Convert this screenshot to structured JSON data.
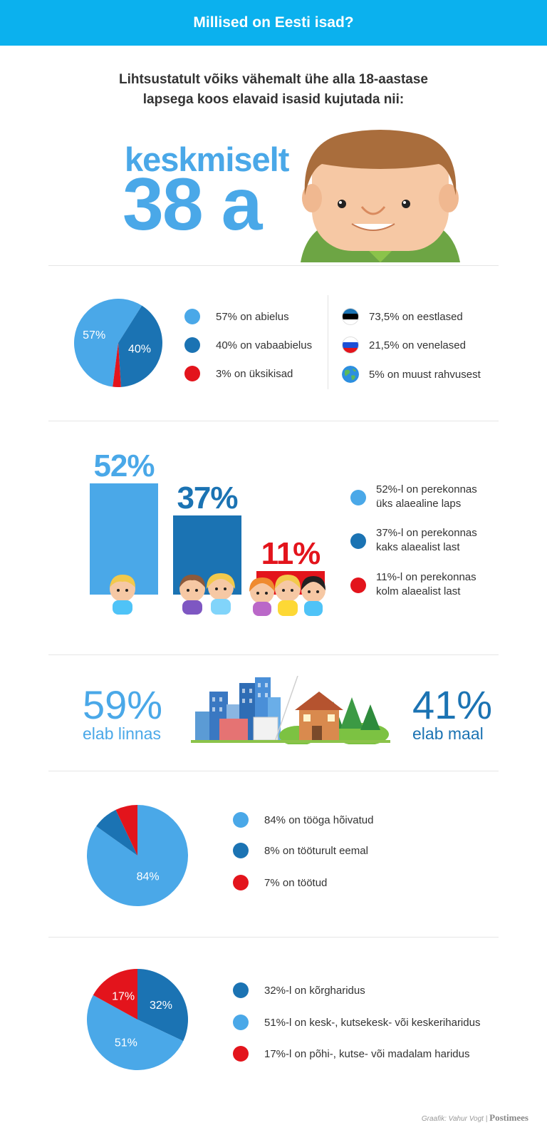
{
  "header": {
    "title": "Millised on Eesti isad?"
  },
  "intro": {
    "line1": "Lihtsustatult võiks vähemalt ühe alla 18-aastase",
    "line2": "lapsega koos elavaid isasid kujutada nii:"
  },
  "age": {
    "label": "keskmiselt",
    "value": "38 a"
  },
  "colors": {
    "light_blue": "#4aa8e8",
    "dark_blue": "#1b73b3",
    "red": "#e3141c",
    "header": "#0bb1ee"
  },
  "chart_data": [
    {
      "type": "pie",
      "slices": [
        {
          "label": "57% on abielus",
          "value": 57,
          "pct_label": "57%",
          "color": "#4aa8e8"
        },
        {
          "label": "40% on vabaabielus",
          "value": 40,
          "pct_label": "40%",
          "color": "#1b73b3"
        },
        {
          "label": "3% on üksikisad",
          "value": 3,
          "pct_label": "",
          "color": "#e3141c"
        }
      ]
    },
    {
      "type": "table",
      "rows": [
        {
          "icon": "estonia-flag-icon",
          "label": "73,5% on eestlased",
          "value": 73.5
        },
        {
          "icon": "russia-flag-icon",
          "label": "21,5% on venelased",
          "value": 21.5
        },
        {
          "icon": "globe-icon",
          "label": "5% on muust rahvusest",
          "value": 5
        }
      ]
    },
    {
      "type": "bar",
      "categories": [
        "52%",
        "37%",
        "11%"
      ],
      "values": [
        52,
        37,
        11
      ],
      "colors": [
        "#4aa8e8",
        "#1b73b3",
        "#e3141c"
      ],
      "legend": [
        {
          "line1": "52%-l on perekonnas",
          "line2": "üks alaealine laps"
        },
        {
          "line1": "37%-l on perekonnas",
          "line2": "kaks alaealist last"
        },
        {
          "line1": "11%-l on perekonnas",
          "line2": "kolm alaealist last"
        }
      ]
    },
    {
      "type": "table",
      "rows": [
        {
          "pct": "59%",
          "label": "elab linnas",
          "value": 59
        },
        {
          "pct": "41%",
          "label": "elab maal",
          "value": 41
        }
      ]
    },
    {
      "type": "pie",
      "slices": [
        {
          "label": "84% on tööga hõivatud",
          "value": 84,
          "pct_label": "84%",
          "color": "#4aa8e8"
        },
        {
          "label": "8% on tööturult eemal",
          "value": 8,
          "pct_label": "",
          "color": "#1b73b3"
        },
        {
          "label": "7% on töötud",
          "value": 7,
          "pct_label": "",
          "color": "#e3141c"
        }
      ]
    },
    {
      "type": "pie",
      "slices": [
        {
          "label": "32%-l on kõrgharidus",
          "value": 32,
          "pct_label": "32%",
          "color": "#1b73b3"
        },
        {
          "label": "51%-l on kesk-, kutsekesk- või keskeriharidus",
          "value": 51,
          "pct_label": "51%",
          "color": "#4aa8e8"
        },
        {
          "label": "17%-l on põhi-, kutse- või madalam haridus",
          "value": 17,
          "pct_label": "17%",
          "color": "#e3141c"
        }
      ]
    }
  ],
  "credit": {
    "text": "Graafik: Vahur Vogt",
    "sep": "|",
    "brand": "Postimees"
  }
}
